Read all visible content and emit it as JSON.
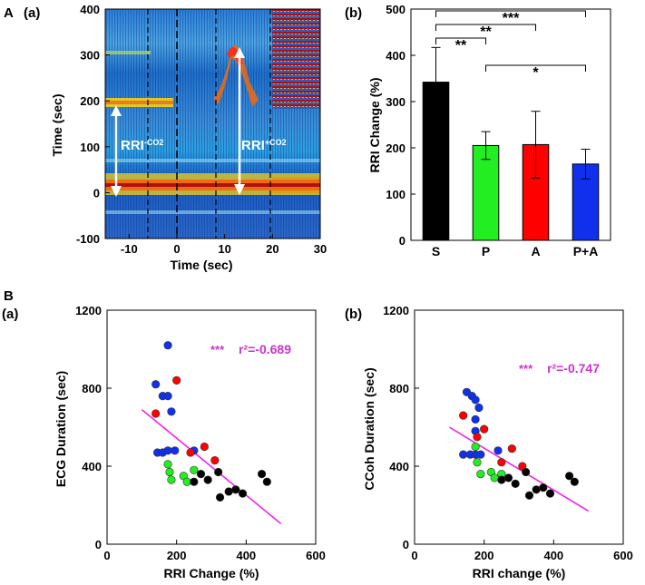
{
  "panel_labels": {
    "A": "A",
    "B": "B",
    "a_top": "(a)",
    "b_top": "(b)",
    "a_bottom": "(a)",
    "b_bottom": "(b)"
  },
  "colors": {
    "S": "#000000",
    "P": "#22ee22",
    "A": "#ff0000",
    "PA": "#1030ee",
    "fit": "#ee22ee",
    "stat": "#cc33cc"
  },
  "chart_data": [
    {
      "id": "heatmap-a",
      "type": "heatmap",
      "title": "",
      "xlabel": "Time (sec)",
      "ylabel": "Time (sec)",
      "xlim": [
        -15,
        30
      ],
      "ylim": [
        -100,
        400
      ],
      "xticks": [
        "-10",
        "0",
        "10",
        "20",
        "30"
      ],
      "yticks": [
        "-100",
        "0",
        "100",
        "200",
        "300",
        "400"
      ],
      "annotations": [
        "RRI",
        "-CO2",
        "RRI",
        "+CO2"
      ],
      "arrows": [
        {
          "label": "RRI-CO2",
          "x": -12,
          "y_from": 0,
          "y_to": 180
        },
        {
          "label": "RRI+CO2",
          "x": 13,
          "y_from": 0,
          "y_to": 310
        }
      ],
      "dashed_lines_x": [
        -4.5,
        0,
        10,
        20
      ],
      "bands": [
        {
          "name": "zero-band",
          "y": 5
        },
        {
          "name": "main-ridge",
          "y_start": 200,
          "y_end": 300
        }
      ]
    },
    {
      "id": "bar-b",
      "type": "bar",
      "title": "",
      "xlabel": "",
      "ylabel": "RRI Change (%)",
      "categories": [
        "S",
        "P",
        "A",
        "P+A"
      ],
      "values": [
        342,
        205,
        207,
        165
      ],
      "errors": [
        75,
        30,
        72,
        32
      ],
      "ylim": [
        0,
        500
      ],
      "yticks": [
        "0",
        "100",
        "200",
        "300",
        "400",
        "500"
      ],
      "significance": [
        {
          "from": "S",
          "to": "P",
          "label": "**"
        },
        {
          "from": "S",
          "to": "A",
          "label": "**"
        },
        {
          "from": "S",
          "to": "P+A",
          "label": "***"
        },
        {
          "from": "P",
          "to": "P+A",
          "label": "*"
        }
      ]
    },
    {
      "id": "scatter-a",
      "type": "scatter",
      "title": "",
      "xlabel": "RRI Change (%)",
      "ylabel": "ECG Duration (sec)",
      "xlim": [
        0,
        600
      ],
      "ylim": [
        0,
        1200
      ],
      "xticks": [
        "0",
        "200",
        "400",
        "600"
      ],
      "yticks": [
        "0",
        "400",
        "800",
        "1200"
      ],
      "stat_sig": "***",
      "stat_text": "r²=-0.689",
      "fit": {
        "x": [
          100,
          500
        ],
        "y": [
          690,
          105
        ]
      },
      "series": [
        {
          "name": "P+A",
          "color": "#1030ee",
          "points": [
            [
              145,
              470
            ],
            [
              160,
              470
            ],
            [
              175,
              480
            ],
            [
              195,
              480
            ],
            [
              250,
              480
            ],
            [
              140,
              820
            ],
            [
              160,
              760
            ],
            [
              175,
              760
            ],
            [
              185,
              680
            ],
            [
              175,
              1020
            ]
          ]
        },
        {
          "name": "A",
          "color": "#ff0000",
          "points": [
            [
              140,
              670
            ],
            [
              200,
              840
            ],
            [
              240,
              470
            ],
            [
              280,
              500
            ],
            [
              310,
              430
            ]
          ]
        },
        {
          "name": "P",
          "color": "#22ee22",
          "points": [
            [
              175,
              410
            ],
            [
              180,
              370
            ],
            [
              185,
              330
            ],
            [
              220,
              350
            ],
            [
              230,
              320
            ],
            [
              250,
              380
            ]
          ]
        },
        {
          "name": "S",
          "color": "#000000",
          "points": [
            [
              250,
              320
            ],
            [
              270,
              360
            ],
            [
              290,
              330
            ],
            [
              320,
              370
            ],
            [
              325,
              240
            ],
            [
              350,
              270
            ],
            [
              370,
              280
            ],
            [
              390,
              260
            ],
            [
              445,
              360
            ],
            [
              460,
              320
            ]
          ]
        }
      ]
    },
    {
      "id": "scatter-b",
      "type": "scatter",
      "title": "",
      "xlabel": "RRI change (%)",
      "ylabel": "CCoh Duration (sec)",
      "xlim": [
        0,
        600
      ],
      "ylim": [
        0,
        1200
      ],
      "xticks": [
        "0",
        "200",
        "400",
        "600"
      ],
      "yticks": [
        "0",
        "400",
        "800",
        "1200"
      ],
      "stat_sig": "***",
      "stat_text": "r²=-0.747",
      "fit": {
        "x": [
          100,
          500
        ],
        "y": [
          600,
          170
        ]
      },
      "series": [
        {
          "name": "P+A",
          "color": "#1030ee",
          "points": [
            [
              140,
              460
            ],
            [
              160,
              460
            ],
            [
              175,
              460
            ],
            [
              190,
              460
            ],
            [
              240,
              480
            ],
            [
              150,
              780
            ],
            [
              165,
              760
            ],
            [
              175,
              740
            ],
            [
              185,
              700
            ],
            [
              175,
              640
            ],
            [
              175,
              580
            ]
          ]
        },
        {
          "name": "A",
          "color": "#ff0000",
          "points": [
            [
              140,
              660
            ],
            [
              200,
              590
            ],
            [
              250,
              420
            ],
            [
              280,
              490
            ],
            [
              310,
              400
            ],
            [
              180,
              550
            ]
          ]
        },
        {
          "name": "P",
          "color": "#22ee22",
          "points": [
            [
              175,
              500
            ],
            [
              180,
              420
            ],
            [
              190,
              360
            ],
            [
              220,
              370
            ],
            [
              230,
              340
            ],
            [
              250,
              360
            ]
          ]
        },
        {
          "name": "S",
          "color": "#000000",
          "points": [
            [
              250,
              330
            ],
            [
              270,
              340
            ],
            [
              290,
              310
            ],
            [
              320,
              370
            ],
            [
              330,
              250
            ],
            [
              350,
              280
            ],
            [
              370,
              290
            ],
            [
              390,
              260
            ],
            [
              445,
              350
            ],
            [
              460,
              320
            ]
          ]
        }
      ]
    }
  ]
}
